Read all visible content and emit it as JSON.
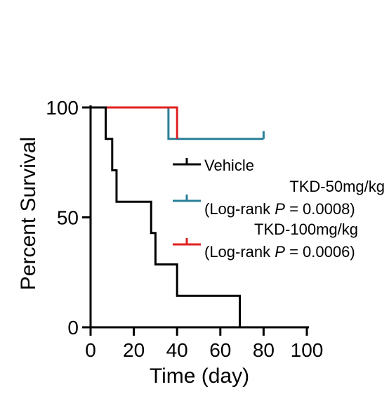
{
  "chart_data": {
    "type": "line",
    "subtype": "kaplan-meier-step",
    "xlabel": "Time (day)",
    "ylabel": "Percent Survival",
    "xlim": [
      0,
      100
    ],
    "ylim": [
      0,
      100
    ],
    "x_ticks": [
      "0",
      "20",
      "40",
      "60",
      "80",
      "100"
    ],
    "y_ticks": [
      "0",
      "50",
      "100"
    ],
    "grid": false,
    "legend_position": "right",
    "series": [
      {
        "name": "Vehicle",
        "color": "#000000",
        "legend_lines": [
          "Vehicle"
        ],
        "x": [
          0,
          7,
          10,
          12,
          28,
          30,
          40,
          69
        ],
        "y": [
          100,
          85.7,
          71.4,
          57.1,
          42.9,
          28.6,
          14.3,
          0
        ]
      },
      {
        "name": "TKD-50mg/kg (Log-rank P = 0.0008)",
        "color": "#2a7f99",
        "legend_lines": [
          "TKD-50mg/kg",
          "(Log-rank ",
          "P",
          " = 0.0008)"
        ],
        "x": [
          0,
          36,
          80
        ],
        "y": [
          100,
          85.7,
          85.7
        ]
      },
      {
        "name": "TKD-100mg/kg (Log-rank P = 0.0006)",
        "color": "#e02020",
        "legend_lines": [
          "TKD-100mg/kg",
          "(Log-rank ",
          "P",
          " = 0.0006)"
        ],
        "x": [
          0,
          40
        ],
        "y": [
          100,
          85.7
        ]
      }
    ]
  }
}
